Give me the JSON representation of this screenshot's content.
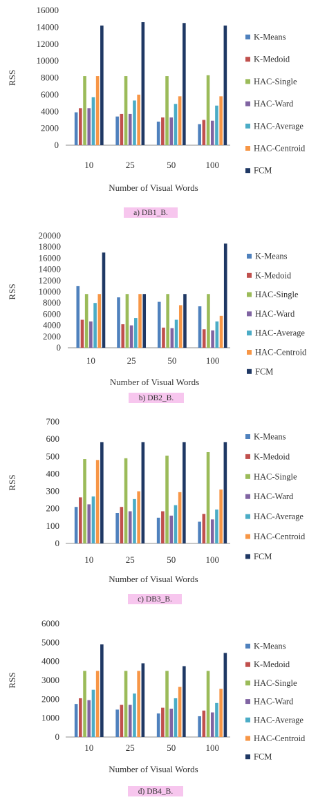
{
  "colors": {
    "K-Means": "#4f81bd",
    "K-Medoid": "#c0504d",
    "HAC-Single": "#9bbb59",
    "HAC-Ward": "#8064a2",
    "HAC-Average": "#4bacc6",
    "HAC-Centroid": "#f79646",
    "FCM": "#1f3864",
    "caption_bg": "#f7c6ee"
  },
  "chart_data": [
    {
      "type": "bar",
      "caption": "a)  DB1_B.",
      "xlabel": "Number of Visual Words",
      "ylabel": "RSS",
      "categories": [
        "10",
        "25",
        "50",
        "100"
      ],
      "ylim": [
        0,
        16000
      ],
      "yticks": [
        "0",
        "2000",
        "4000",
        "6000",
        "8000",
        "10000",
        "12000",
        "14000",
        "16000"
      ],
      "legend_position": "right",
      "series": [
        {
          "name": "K-Means",
          "values": [
            3900,
            3400,
            2800,
            2500
          ]
        },
        {
          "name": "K-Medoid",
          "values": [
            4400,
            3700,
            3300,
            3000
          ]
        },
        {
          "name": "HAC-Single",
          "values": [
            8200,
            8200,
            8200,
            8300
          ]
        },
        {
          "name": "HAC-Ward",
          "values": [
            4400,
            3700,
            3300,
            2900
          ]
        },
        {
          "name": "HAC-Average",
          "values": [
            5700,
            5300,
            4900,
            4700
          ]
        },
        {
          "name": "HAC-Centroid",
          "values": [
            8200,
            6000,
            5800,
            5800
          ]
        },
        {
          "name": "FCM",
          "values": [
            14200,
            14600,
            14500,
            14200
          ]
        }
      ]
    },
    {
      "type": "bar",
      "caption": "b)  DB2_B.",
      "xlabel": "Number of Visual Words",
      "ylabel": "RSS",
      "categories": [
        "10",
        "25",
        "50",
        "100"
      ],
      "ylim": [
        0,
        20000
      ],
      "yticks": [
        "0",
        "2000",
        "4000",
        "6000",
        "8000",
        "10000",
        "12000",
        "14000",
        "16000",
        "18000",
        "20000"
      ],
      "legend_position": "right",
      "series": [
        {
          "name": "K-Means",
          "values": [
            11000,
            9000,
            8200,
            7400
          ]
        },
        {
          "name": "K-Medoid",
          "values": [
            5000,
            4200,
            3600,
            3300
          ]
        },
        {
          "name": "HAC-Single",
          "values": [
            9600,
            9600,
            9600,
            9600
          ]
        },
        {
          "name": "HAC-Ward",
          "values": [
            4700,
            4000,
            3500,
            3100
          ]
        },
        {
          "name": "HAC-Average",
          "values": [
            8000,
            5300,
            5000,
            4700
          ]
        },
        {
          "name": "HAC-Centroid",
          "values": [
            9600,
            9600,
            7600,
            5700
          ]
        },
        {
          "name": "FCM",
          "values": [
            17000,
            9600,
            9600,
            18600
          ]
        }
      ]
    },
    {
      "type": "bar",
      "caption": "c) DB3_B.",
      "xlabel": "Number of Visual Words",
      "ylabel": "RSS",
      "categories": [
        "10",
        "25",
        "50",
        "100"
      ],
      "ylim": [
        0,
        700
      ],
      "yticks": [
        "0",
        "100",
        "200",
        "300",
        "400",
        "500",
        "600",
        "700"
      ],
      "legend_position": "right",
      "series": [
        {
          "name": "K-Means",
          "values": [
            210,
            175,
            148,
            125
          ]
        },
        {
          "name": "K-Medoid",
          "values": [
            265,
            210,
            185,
            170
          ]
        },
        {
          "name": "HAC-Single",
          "values": [
            485,
            490,
            505,
            525
          ]
        },
        {
          "name": "HAC-Ward",
          "values": [
            225,
            185,
            160,
            138
          ]
        },
        {
          "name": "HAC-Average",
          "values": [
            270,
            255,
            220,
            195
          ]
        },
        {
          "name": "HAC-Centroid",
          "values": [
            480,
            300,
            295,
            310
          ]
        },
        {
          "name": "FCM",
          "values": [
            583,
            583,
            583,
            583
          ]
        }
      ]
    },
    {
      "type": "bar",
      "caption": "d)  DB4_B.",
      "xlabel": "Number of Visual Words",
      "ylabel": "RSS",
      "categories": [
        "10",
        "25",
        "50",
        "100"
      ],
      "ylim": [
        0,
        6000
      ],
      "yticks": [
        "0",
        "1000",
        "2000",
        "3000",
        "4000",
        "5000",
        "6000"
      ],
      "legend_position": "right",
      "series": [
        {
          "name": "K-Means",
          "values": [
            1750,
            1450,
            1250,
            1100
          ]
        },
        {
          "name": "K-Medoid",
          "values": [
            2050,
            1700,
            1550,
            1400
          ]
        },
        {
          "name": "HAC-Single",
          "values": [
            3500,
            3500,
            3500,
            3500
          ]
        },
        {
          "name": "HAC-Ward",
          "values": [
            1950,
            1700,
            1500,
            1300
          ]
        },
        {
          "name": "HAC-Average",
          "values": [
            2500,
            2300,
            2050,
            1800
          ]
        },
        {
          "name": "HAC-Centroid",
          "values": [
            3500,
            3500,
            2650,
            2550
          ]
        },
        {
          "name": "FCM",
          "values": [
            4900,
            3900,
            3750,
            4450
          ]
        }
      ]
    }
  ]
}
